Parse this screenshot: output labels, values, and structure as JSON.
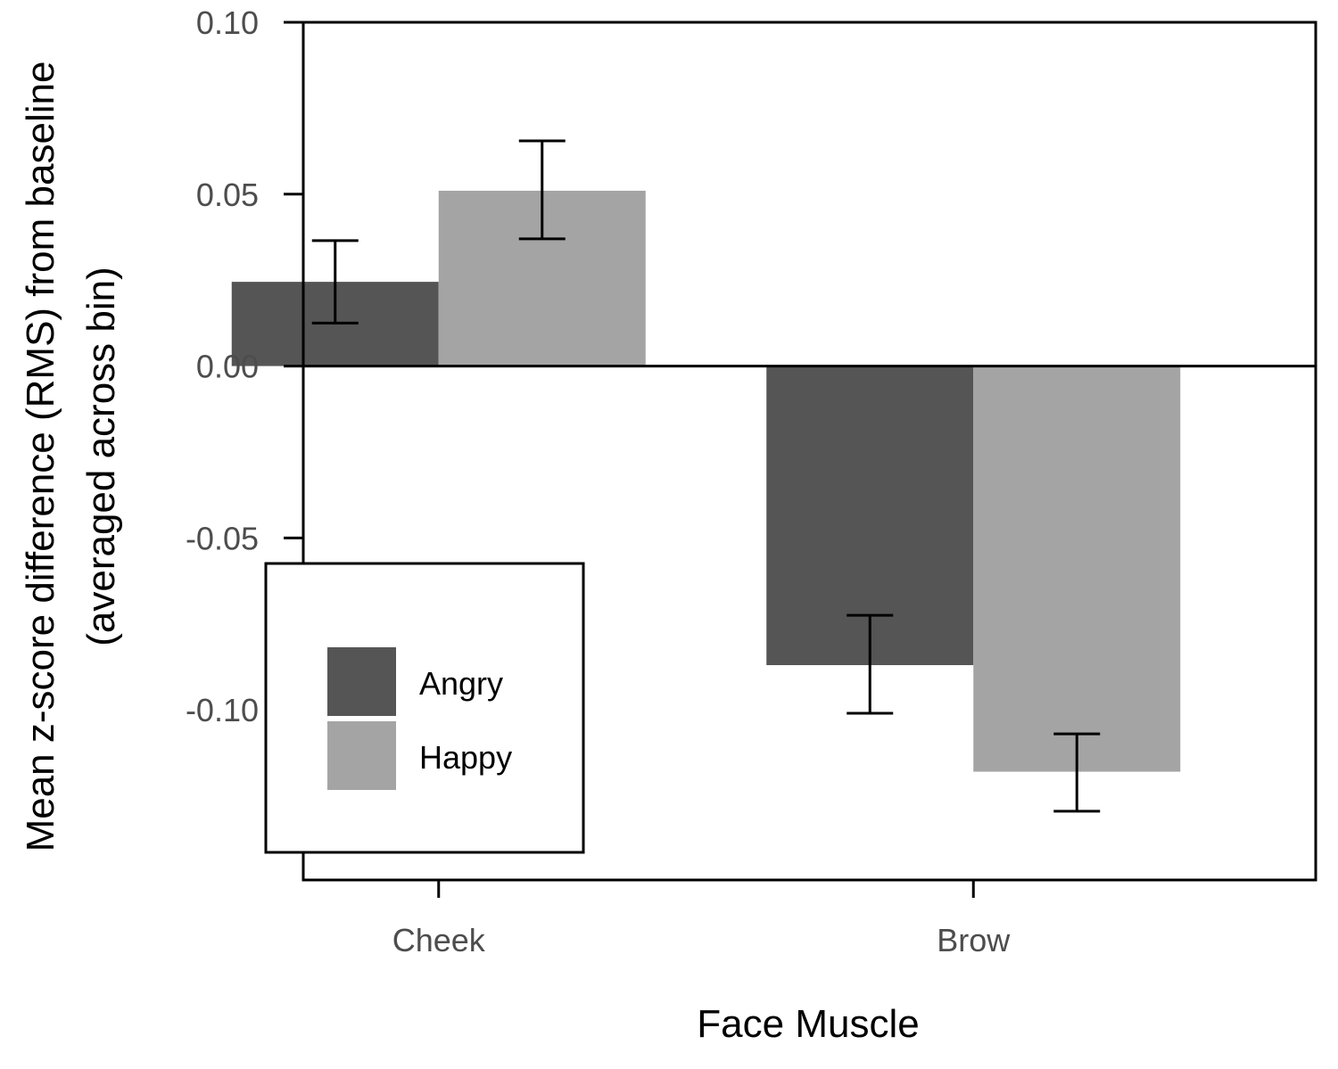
{
  "chart_data": {
    "type": "bar",
    "title": "",
    "xlabel": "Face Muscle",
    "ylabel": [
      "Mean z-score difference (RMS) from baseline",
      "(averaged across bin)"
    ],
    "categories": [
      "Cheek",
      "Brow"
    ],
    "series": [
      {
        "name": "Angry",
        "color": "#555555",
        "values": [
          0.0245,
          -0.087
        ],
        "error_low": [
          0.0125,
          -0.101
        ],
        "error_high": [
          0.0365,
          -0.0725
        ]
      },
      {
        "name": "Happy",
        "color": "#a4a4a4",
        "values": [
          0.051,
          -0.118
        ],
        "error_low": [
          0.037,
          -0.1295
        ],
        "error_high": [
          0.0655,
          -0.107
        ]
      }
    ],
    "ylim": [
      -0.1495,
      0.1
    ],
    "yticks": [
      0.1,
      0.05,
      0.0,
      -0.05,
      -0.1
    ],
    "ytick_labels": [
      "0.10",
      "0.05",
      "0.00",
      "-0.05",
      "-0.10"
    ],
    "grid": false,
    "zero_line": true,
    "legend_position": "bottom-left"
  }
}
